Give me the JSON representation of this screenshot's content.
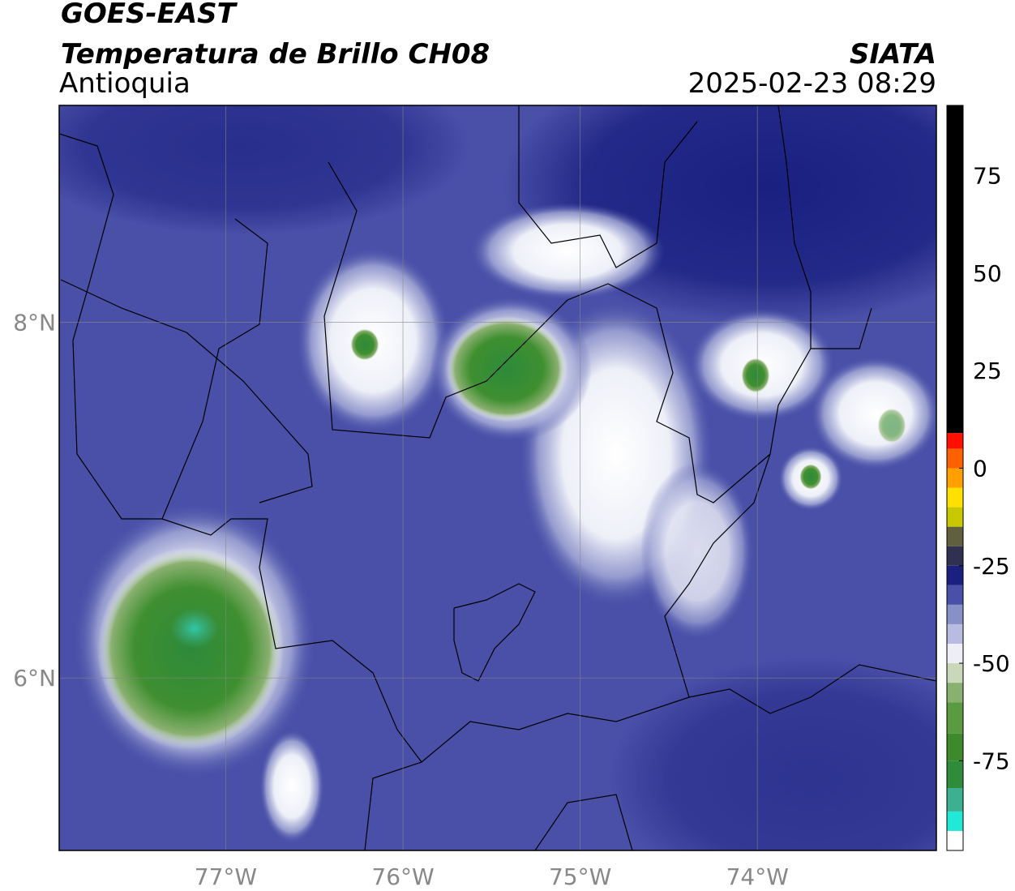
{
  "header": {
    "title": "GOES-EAST",
    "subtitle": "Temperatura de Brillo CH08",
    "region": "Antioquia",
    "source": "SIATA",
    "timestamp": "2025-02-23 08:29"
  },
  "map": {
    "xlim": [
      -77.94,
      -72.99
    ],
    "ylim": [
      5.03,
      9.22
    ],
    "xticks": [
      {
        "value": -77,
        "label": "77°W"
      },
      {
        "value": -76,
        "label": "76°W"
      },
      {
        "value": -75,
        "label": "75°W"
      },
      {
        "value": -74,
        "label": "74°W"
      }
    ],
    "yticks": [
      {
        "value": 6,
        "label": "6°N"
      },
      {
        "value": 8,
        "label": "8°N"
      }
    ],
    "grid": true
  },
  "colorbar": {
    "lim": [
      -98,
      93
    ],
    "ticks": [
      -75,
      -50,
      -25,
      0,
      25,
      50,
      75
    ],
    "bounds": [
      -98,
      -93,
      -88,
      -82,
      -75,
      -68,
      -60,
      -55,
      -50,
      -45,
      -40,
      -35,
      -30,
      -25,
      -20,
      -15,
      -10,
      -5,
      0,
      5,
      9,
      93
    ],
    "colors": [
      "#ffffff",
      "#22e8d8",
      "#3cb090",
      "#2f8c3a",
      "#3c8a2c",
      "#5a9a40",
      "#8ab070",
      "#c8d8b8",
      "#eeeef6",
      "#b8bce0",
      "#8890c8",
      "#4a50a8",
      "#1a2080",
      "#303050",
      "#606040",
      "#c8c800",
      "#ffe000",
      "#ffa000",
      "#ff6000",
      "#ff1000",
      "#000000"
    ]
  }
}
